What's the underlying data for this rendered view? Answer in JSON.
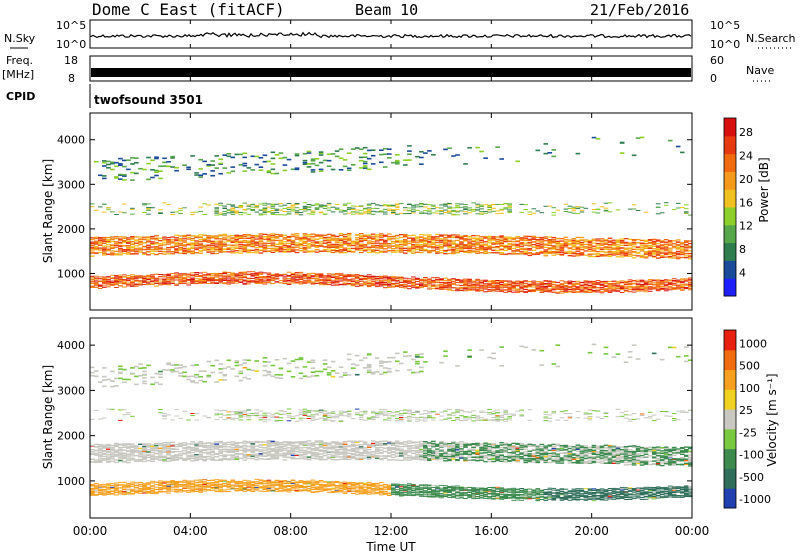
{
  "header": {
    "station": "Dome C East (fitACF)",
    "beam": "Beam 10",
    "date": "21/Feb/2016"
  },
  "strips": {
    "nsky": {
      "label": "N.Sky",
      "ticks_left": [
        "10^5",
        "10^0"
      ],
      "ticks_right": [
        "10^5",
        "10^0"
      ],
      "right_label": "N.Search"
    },
    "freq": {
      "label_top": "Freq.",
      "label_bottom": "[MHz]",
      "ticks_left": [
        "18",
        "8"
      ],
      "ticks_right": [
        "60",
        "0"
      ],
      "right_label": "Nave"
    },
    "cpid": {
      "label": "CPID",
      "program": "twofsound 3501"
    }
  },
  "chart_data": [
    {
      "type": "heatmap",
      "title": "",
      "ylabel": "Slant Range [km]",
      "yticks": [
        "1000",
        "2000",
        "3000",
        "4000"
      ],
      "ylim": [
        180,
        4600
      ],
      "colorbar_label": "Power [dB]",
      "colorbar_ticks": [
        "4",
        "8",
        "12",
        "16",
        "20",
        "24",
        "28"
      ],
      "colors": [
        "#2020ff",
        "#1a4a9a",
        "#2e7d4f",
        "#56a64a",
        "#8ccf2a",
        "#f0c020",
        "#f39a1a",
        "#f06a10",
        "#e83a10",
        "#d81010"
      ]
    },
    {
      "type": "heatmap",
      "title": "",
      "ylabel": "Slant Range [km]",
      "yticks": [
        "1000",
        "2000",
        "3000",
        "4000"
      ],
      "ylim": [
        180,
        4600
      ],
      "colorbar_label": "Velocity [m s⁻¹]",
      "colorbar_ticks": [
        "1000",
        "500",
        "100",
        "25",
        "-25",
        "-100",
        "-500",
        "-1000"
      ],
      "colors": [
        "#2040b0",
        "#2e6e5a",
        "#3c8a4e",
        "#78c840",
        "#c8c8c0",
        "#f0d020",
        "#f7a020",
        "#f06a10",
        "#e82010"
      ]
    }
  ],
  "xaxis": {
    "label": "Time UT",
    "ticks": [
      "00:00",
      "04:00",
      "08:00",
      "12:00",
      "16:00",
      "20:00",
      "00:00"
    ]
  }
}
